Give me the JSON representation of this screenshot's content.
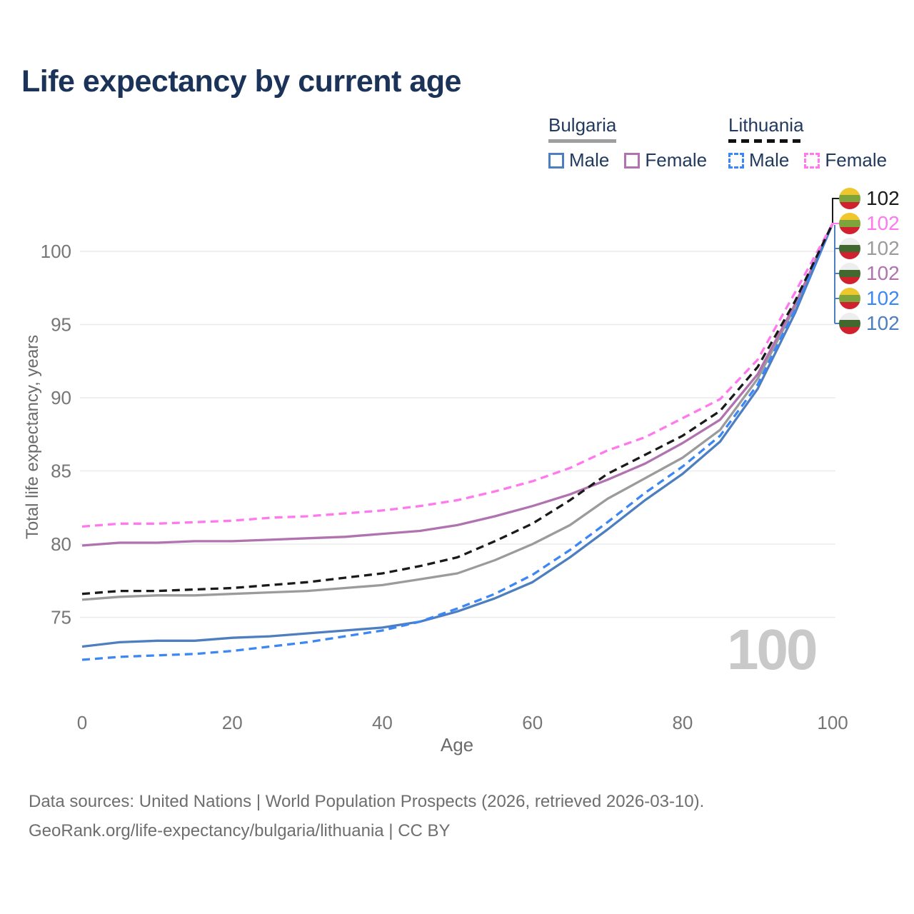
{
  "header": {
    "title": "Life expectancy by current age"
  },
  "legend": {
    "groups": [
      {
        "name": "Bulgaria",
        "line_style": "solid",
        "items": [
          {
            "label": "Male",
            "color": "#4d7ec0"
          },
          {
            "label": "Female",
            "color": "#b173af"
          }
        ]
      },
      {
        "name": "Lithuania",
        "line_style": "dashed",
        "items": [
          {
            "label": "Male",
            "color": "#3d87f5"
          },
          {
            "label": "Female",
            "color": "#ff78ee"
          }
        ]
      }
    ]
  },
  "chart_data": {
    "type": "line",
    "title": "Life expectancy by current age",
    "xlabel": "Age",
    "ylabel": "Total life expectancy, years",
    "x_ticks": [
      0,
      20,
      40,
      60,
      80,
      100
    ],
    "y_ticks": [
      75,
      80,
      85,
      90,
      95,
      100
    ],
    "xlim": [
      0,
      100
    ],
    "ylim": [
      71,
      103
    ],
    "grid": "horizontal",
    "legend_position": "top-right",
    "ages": [
      0,
      5,
      10,
      15,
      20,
      25,
      30,
      35,
      40,
      45,
      50,
      55,
      60,
      65,
      70,
      75,
      80,
      85,
      90,
      95,
      100
    ],
    "series": [
      {
        "name": "Bulgaria",
        "country": "Bulgaria",
        "sex": "Both",
        "color": "#9b9b9b",
        "dashed": false,
        "values": [
          76.2,
          76.4,
          76.5,
          76.5,
          76.6,
          76.7,
          76.8,
          77.0,
          77.2,
          77.6,
          78.0,
          78.9,
          80.0,
          81.3,
          83.1,
          84.5,
          85.9,
          87.8,
          91.3,
          96.2,
          101.9
        ]
      },
      {
        "name": "Bulgaria Female",
        "country": "Bulgaria",
        "sex": "Female",
        "color": "#b173af",
        "dashed": false,
        "values": [
          79.9,
          80.1,
          80.1,
          80.2,
          80.2,
          80.3,
          80.4,
          80.5,
          80.7,
          80.9,
          81.3,
          81.9,
          82.6,
          83.4,
          84.4,
          85.5,
          86.9,
          88.5,
          91.6,
          96.4,
          101.9
        ]
      },
      {
        "name": "Bulgaria Male",
        "country": "Bulgaria",
        "sex": "Male",
        "color": "#4d7ec0",
        "dashed": false,
        "values": [
          73.0,
          73.3,
          73.4,
          73.4,
          73.6,
          73.7,
          73.9,
          74.1,
          74.3,
          74.7,
          75.4,
          76.3,
          77.4,
          79.1,
          81.0,
          83.0,
          84.8,
          87.0,
          90.6,
          95.8,
          101.9
        ]
      },
      {
        "name": "Lithuania Male",
        "country": "Lithuania",
        "sex": "Male",
        "color": "#3d87f5",
        "dashed": true,
        "values": [
          72.1,
          72.3,
          72.4,
          72.5,
          72.7,
          73.0,
          73.3,
          73.7,
          74.1,
          74.7,
          75.6,
          76.6,
          77.9,
          79.6,
          81.5,
          83.5,
          85.3,
          87.4,
          90.9,
          96.0,
          101.9
        ]
      },
      {
        "name": "Lithuania Female",
        "country": "Lithuania",
        "sex": "Female",
        "color": "#ff78ee",
        "dashed": true,
        "values": [
          81.2,
          81.4,
          81.4,
          81.5,
          81.6,
          81.8,
          81.9,
          82.1,
          82.3,
          82.6,
          83.0,
          83.6,
          84.3,
          85.2,
          86.4,
          87.3,
          88.6,
          89.9,
          92.6,
          97.2,
          101.9
        ]
      },
      {
        "name": "Lithuania",
        "country": "Lithuania",
        "sex": "Both",
        "color": "#1a1a1a",
        "dashed": true,
        "values": [
          76.6,
          76.8,
          76.8,
          76.9,
          77.0,
          77.2,
          77.4,
          77.7,
          78.0,
          78.5,
          79.1,
          80.2,
          81.4,
          83.0,
          84.8,
          86.1,
          87.4,
          89.1,
          92.1,
          96.6,
          101.9
        ]
      }
    ]
  },
  "end_labels": {
    "rows": [
      {
        "country": "Lithuania",
        "series": "Lithuania",
        "value": "102",
        "color": "#1a1a1a"
      },
      {
        "country": "Lithuania",
        "series": "Lithuania Female",
        "value": "102",
        "color": "#ff78ee"
      },
      {
        "country": "Bulgaria",
        "series": "Bulgaria",
        "value": "102",
        "color": "#9b9b9b"
      },
      {
        "country": "Bulgaria",
        "series": "Bulgaria Female",
        "value": "102",
        "color": "#b173af"
      },
      {
        "country": "Lithuania",
        "series": "Lithuania Male",
        "value": "102",
        "color": "#3d87f5"
      },
      {
        "country": "Bulgaria",
        "series": "Bulgaria Male",
        "value": "102",
        "color": "#4d7ec0"
      }
    ]
  },
  "annotations": {
    "hover_age": "100"
  },
  "footer": {
    "line1": "Data sources: United Nations | World Population Prospects (2026, retrieved 2026-03-10).",
    "line2": "GeoRank.org/life-expectancy/bulgaria/lithuania | CC BY"
  }
}
